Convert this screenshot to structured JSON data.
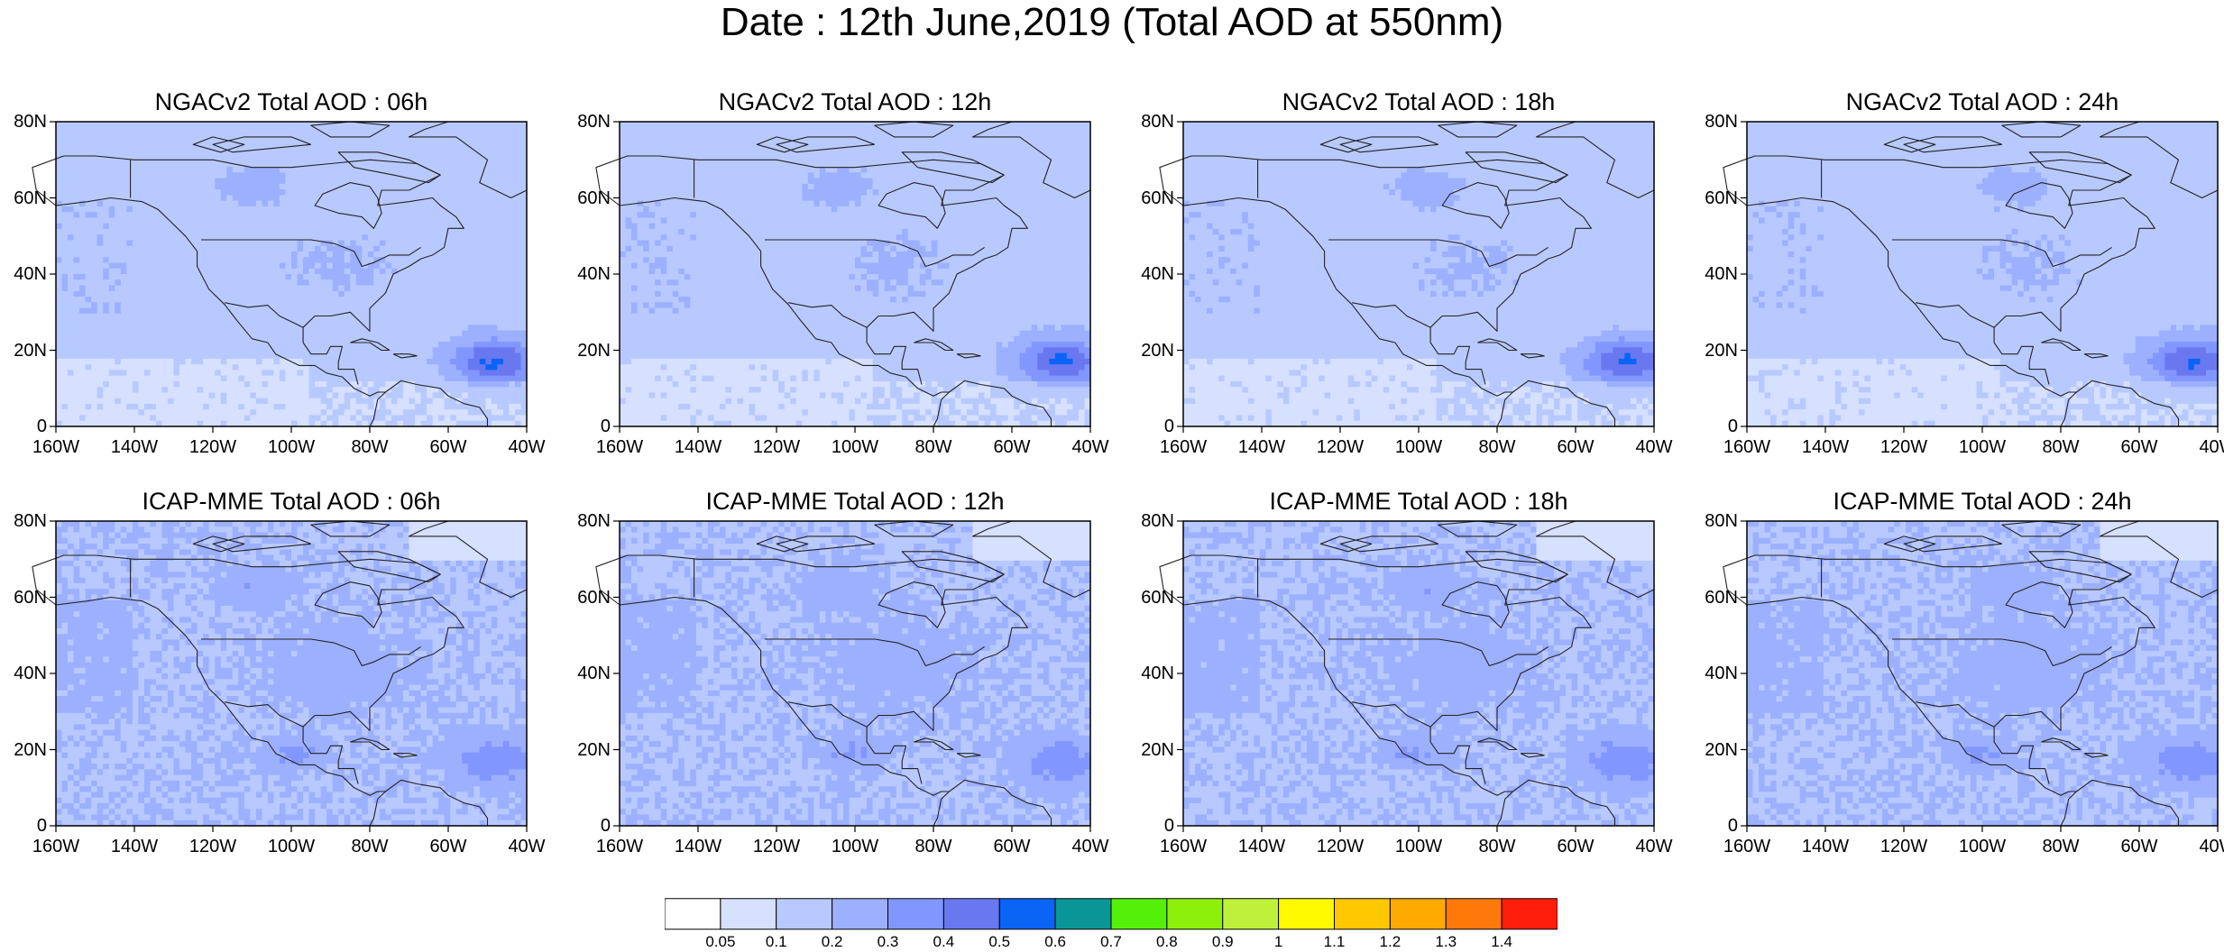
{
  "title": "Date : 12th June,2019 (Total AOD at 550nm)",
  "lat_ticks": [
    "80N",
    "60N",
    "40N",
    "20N",
    "0"
  ],
  "lon_ticks": [
    "160W",
    "140W",
    "120W",
    "100W",
    "80W",
    "60W",
    "40W"
  ],
  "panels": [
    {
      "title": "NGACv2 Total AOD : 06h",
      "model": "NGACv2",
      "hour": 6
    },
    {
      "title": "NGACv2 Total AOD : 12h",
      "model": "NGACv2",
      "hour": 12
    },
    {
      "title": "NGACv2 Total AOD : 18h",
      "model": "NGACv2",
      "hour": 18
    },
    {
      "title": "NGACv2 Total AOD : 24h",
      "model": "NGACv2",
      "hour": 24
    },
    {
      "title": "ICAP-MME Total AOD : 06h",
      "model": "ICAP-MME",
      "hour": 6
    },
    {
      "title": "ICAP-MME Total AOD : 12h",
      "model": "ICAP-MME",
      "hour": 12
    },
    {
      "title": "ICAP-MME Total AOD : 18h",
      "model": "ICAP-MME",
      "hour": 18
    },
    {
      "title": "ICAP-MME Total AOD : 24h",
      "model": "ICAP-MME",
      "hour": 24
    }
  ],
  "colorbar": {
    "labels": [
      "0.05",
      "0.1",
      "0.2",
      "0.3",
      "0.4",
      "0.5",
      "0.6",
      "0.7",
      "0.8",
      "0.9",
      "1",
      "1.1",
      "1.2",
      "1.3",
      "1.4"
    ],
    "colors": [
      "#ffffff",
      "#d6e0ff",
      "#b8c9ff",
      "#9cb0ff",
      "#8296ff",
      "#6a78f0",
      "#0a64f5",
      "#0a9696",
      "#55f00a",
      "#8cf00a",
      "#bef03c",
      "#fffa00",
      "#ffc800",
      "#ffaa00",
      "#ff780a",
      "#ff1e0a"
    ]
  }
}
